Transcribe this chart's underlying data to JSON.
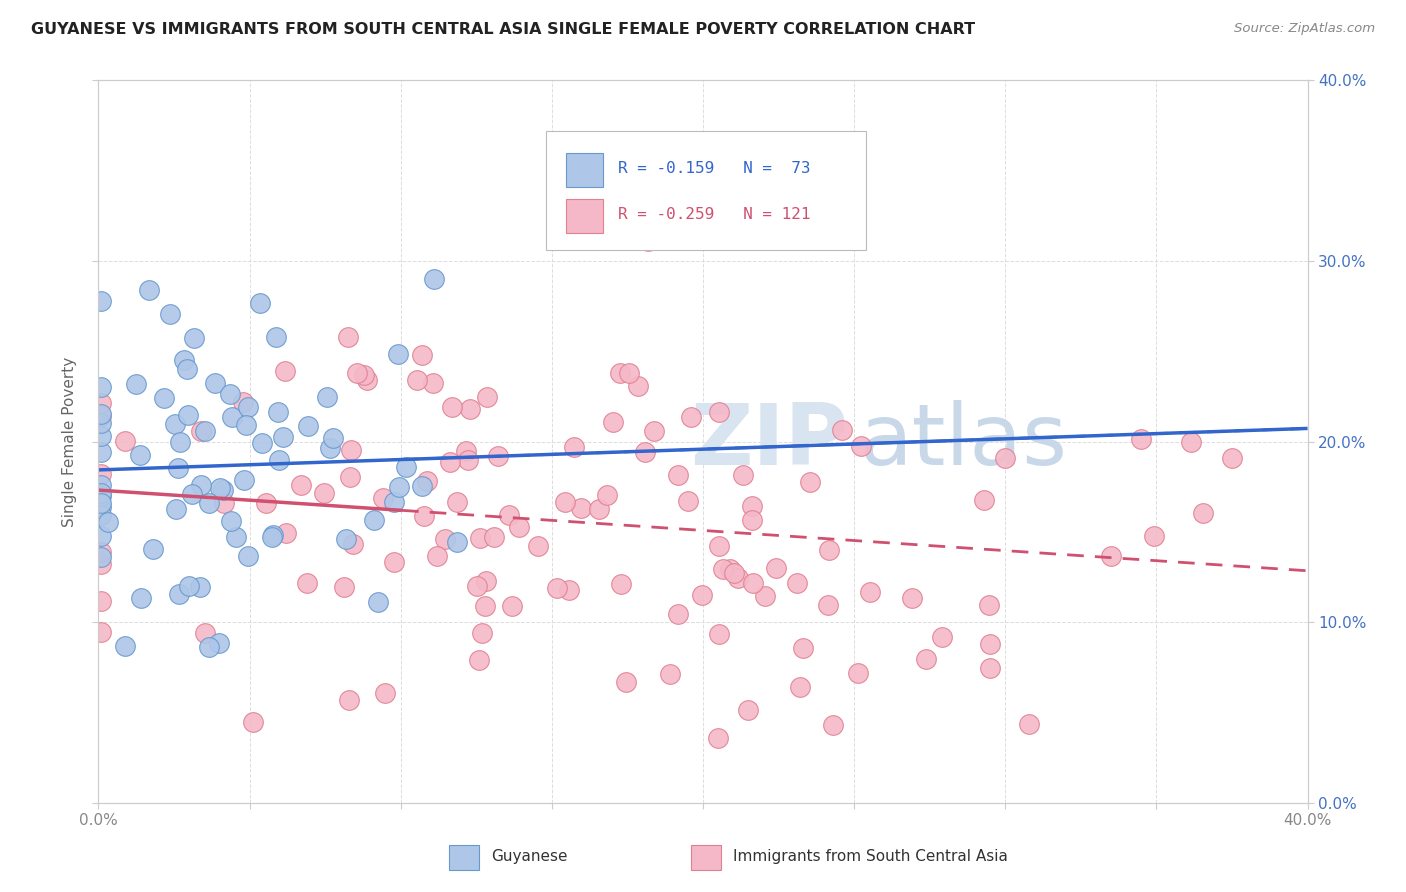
{
  "title": "GUYANESE VS IMMIGRANTS FROM SOUTH CENTRAL ASIA SINGLE FEMALE POVERTY CORRELATION CHART",
  "source": "Source: ZipAtlas.com",
  "ylabel": "Single Female Poverty",
  "series1_label": "Guyanese",
  "series1_color": "#aec6e8",
  "series1_edge_color": "#6699cc",
  "series1_line_color": "#3366cc",
  "series1_R": -0.159,
  "series1_N": 73,
  "series2_label": "Immigrants from South Central Asia",
  "series2_color": "#f5b8c8",
  "series2_edge_color": "#e08090",
  "series2_line_color": "#d05070",
  "series2_R": -0.259,
  "series2_N": 121,
  "background_color": "#ffffff",
  "grid_color": "#dddddd",
  "right_tick_color": "#4472c4",
  "xmin": 0.0,
  "xmax": 0.4,
  "ymin": 0.0,
  "ymax": 0.4,
  "watermark_text": "ZIPatlas",
  "watermark_color": "#d8e4f0",
  "legend_R1": "R = -0.159   N =  73",
  "legend_R2": "R = -0.259   N = 121"
}
